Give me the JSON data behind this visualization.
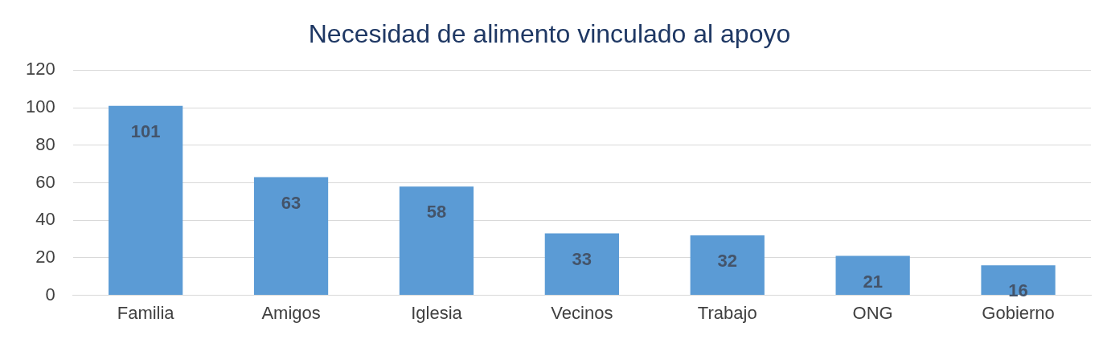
{
  "chart_data": {
    "type": "bar",
    "title": "Necesidad de alimento vinculado al apoyo",
    "categories": [
      "Familia",
      "Amigos",
      "Iglesia",
      "Vecinos",
      "Trabajo",
      "ONG",
      "Gobierno"
    ],
    "values": [
      101,
      63,
      58,
      33,
      32,
      21,
      16
    ],
    "color": "#5b9bd5",
    "ylim": [
      0,
      120
    ],
    "yticks": [
      0,
      20,
      40,
      60,
      80,
      100,
      120
    ],
    "grid": "y",
    "data_labels": true,
    "legend": false
  }
}
